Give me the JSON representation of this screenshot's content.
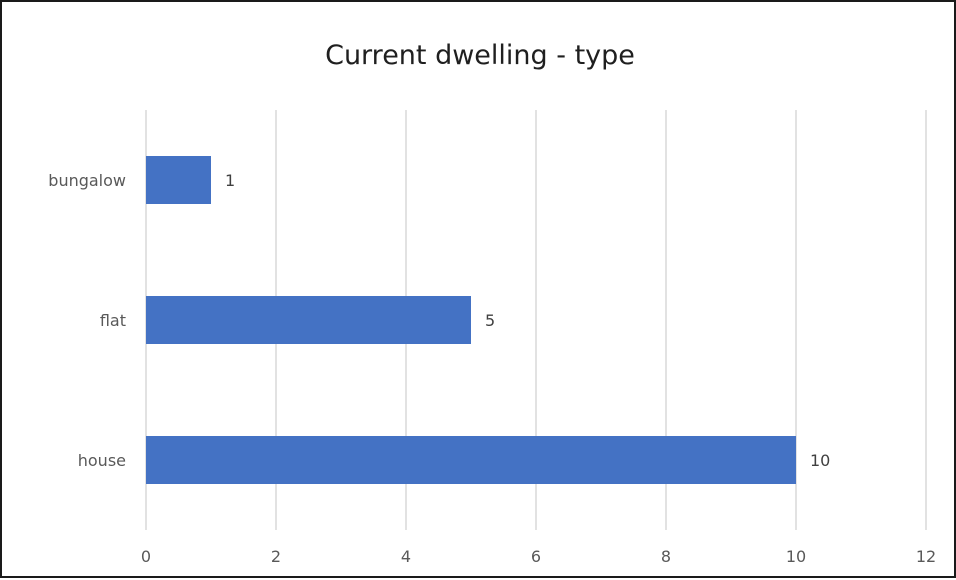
{
  "chart_data": {
    "type": "bar",
    "orientation": "horizontal",
    "title": "Current dwelling - type",
    "xlabel": "",
    "ylabel": "",
    "categories": [
      "bungalow",
      "flat",
      "house"
    ],
    "values": [
      1,
      5,
      10
    ],
    "data_labels": [
      "1",
      "5",
      "10"
    ],
    "xlim": [
      0,
      12
    ],
    "x_ticks": [
      0,
      2,
      4,
      6,
      8,
      10,
      12
    ],
    "grid": "vertical",
    "legend": "none",
    "bar_color": "#4472c4"
  }
}
